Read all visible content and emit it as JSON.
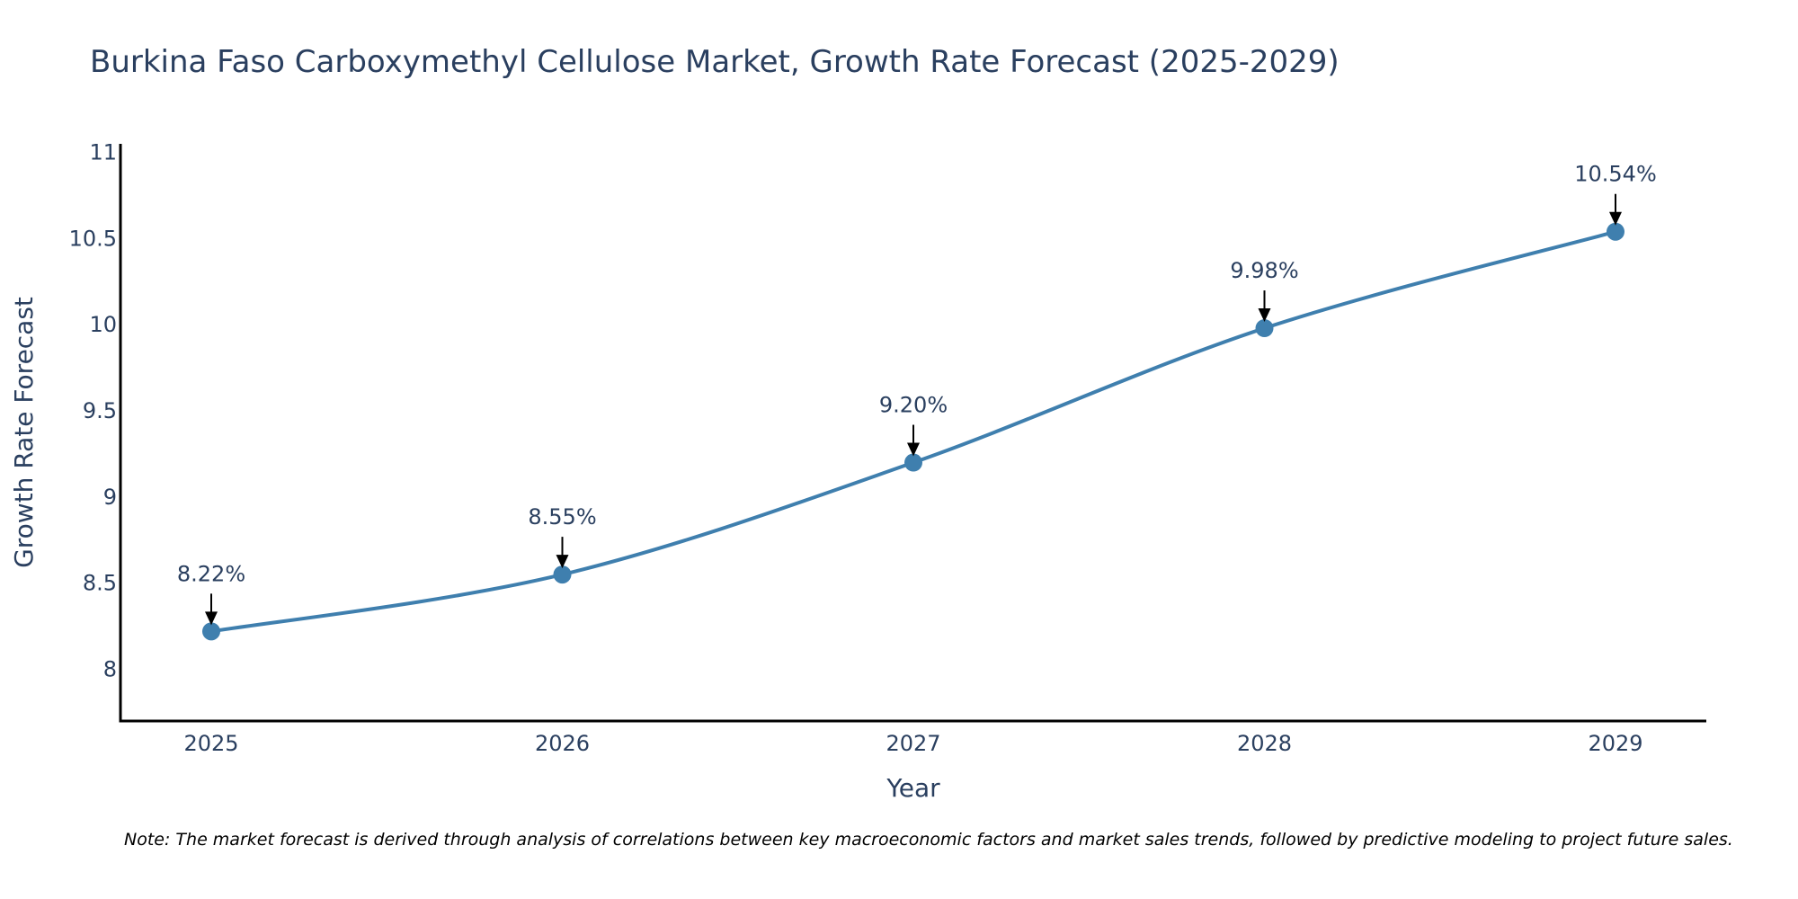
{
  "chart_data": {
    "type": "line",
    "title": "Burkina Faso Carboxymethyl Cellulose Market, Growth Rate Forecast (2025-2029)",
    "xlabel": "Year",
    "ylabel": "Growth Rate Forecast",
    "categories": [
      "2025",
      "2026",
      "2027",
      "2028",
      "2029"
    ],
    "values": [
      8.22,
      8.55,
      9.2,
      9.98,
      10.54
    ],
    "data_labels": [
      "8.22%",
      "8.55%",
      "9.20%",
      "9.98%",
      "10.54%"
    ],
    "yticks": [
      8,
      8.5,
      9,
      9.5,
      10,
      10.5,
      11
    ],
    "ytick_labels": [
      "8",
      "8.5",
      "9",
      "9.5",
      "10",
      "10.5",
      "11"
    ],
    "ylim": [
      7.7,
      11.05
    ],
    "line_shape": "spline",
    "grid": false,
    "legend": "none",
    "line_color": "#3f7fae",
    "marker_color": "#3f7fae",
    "note": "Note: The market forecast is derived through analysis of correlations between key macroeconomic factors and market sales trends, followed by predictive modeling to project future sales."
  }
}
